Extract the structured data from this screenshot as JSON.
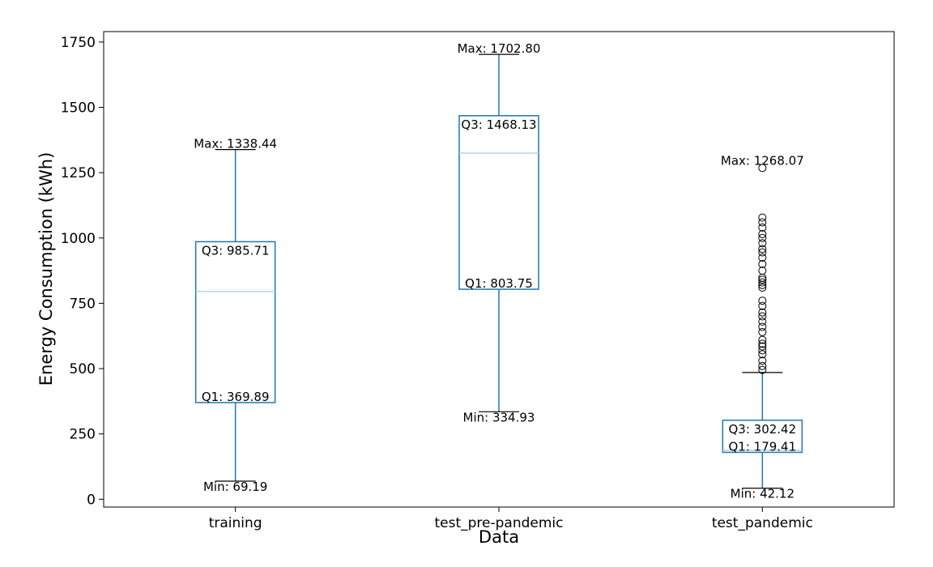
{
  "chart_data": {
    "type": "box",
    "title": "",
    "xlabel": "Data",
    "ylabel": "Energy Consumption (kWh)",
    "ylim": [
      -30,
      1790
    ],
    "yticks": [
      0,
      250,
      500,
      750,
      1000,
      1250,
      1500,
      1750
    ],
    "grid": false,
    "colors": {
      "box": "#1f77b4",
      "median": "#add8e6",
      "outlier": "#000000"
    },
    "categories": [
      "training",
      "test_pre-pandemic",
      "test_pandemic"
    ],
    "boxes": [
      {
        "category": "training",
        "min": 69.19,
        "q1": 369.89,
        "median": 795,
        "q3": 985.71,
        "max": 1338.44,
        "outliers": [],
        "labels": {
          "max": "Max: 1338.44",
          "q3": "Q3: 985.71",
          "q1": "Q1: 369.89",
          "min": "Min: 69.19"
        }
      },
      {
        "category": "test_pre-pandemic",
        "min": 334.93,
        "q1": 803.75,
        "median": 1325,
        "q3": 1468.13,
        "max": 1702.8,
        "outliers": [],
        "labels": {
          "max": "Max: 1702.80",
          "q3": "Q3: 1468.13",
          "q1": "Q1: 803.75",
          "min": "Min: 334.93"
        }
      },
      {
        "category": "test_pandemic",
        "min": 42.12,
        "q1": 179.41,
        "median": 188,
        "q3": 302.42,
        "whisker_high": 485,
        "max": 1268.07,
        "outliers": [
          1268.07,
          1078,
          1060,
          1040,
          1015,
          1000,
          980,
          958,
          945,
          925,
          900,
          875,
          848,
          840,
          830,
          820,
          810,
          760,
          740,
          715,
          700,
          680,
          660,
          640,
          610,
          595,
          585,
          570,
          555,
          530,
          510,
          495
        ],
        "labels": {
          "max": "Max: 1268.07",
          "q3": "Q3: 302.42",
          "q1": "Q1: 179.41",
          "min": "Min: 42.12"
        }
      }
    ]
  }
}
